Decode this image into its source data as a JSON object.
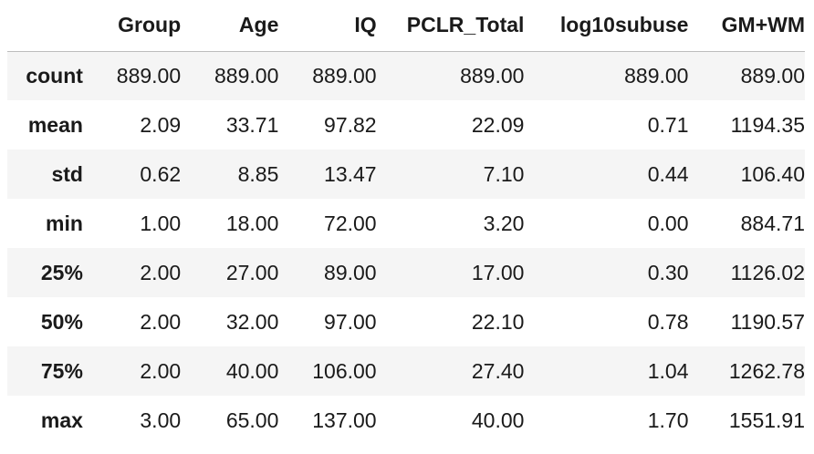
{
  "table": {
    "columns": [
      "",
      "Group",
      "Age",
      "IQ",
      "PCLR_Total",
      "log10subuse",
      "GM+WM"
    ],
    "rows": [
      {
        "label": "count",
        "values": [
          "889.00",
          "889.00",
          "889.00",
          "889.00",
          "889.00",
          "889.00"
        ]
      },
      {
        "label": "mean",
        "values": [
          "2.09",
          "33.71",
          "97.82",
          "22.09",
          "0.71",
          "1194.35"
        ]
      },
      {
        "label": "std",
        "values": [
          "0.62",
          "8.85",
          "13.47",
          "7.10",
          "0.44",
          "106.40"
        ]
      },
      {
        "label": "min",
        "values": [
          "1.00",
          "18.00",
          "72.00",
          "3.20",
          "0.00",
          "884.71"
        ]
      },
      {
        "label": "25%",
        "values": [
          "2.00",
          "27.00",
          "89.00",
          "17.00",
          "0.30",
          "1126.02"
        ]
      },
      {
        "label": "50%",
        "values": [
          "2.00",
          "32.00",
          "97.00",
          "22.10",
          "0.78",
          "1190.57"
        ]
      },
      {
        "label": "75%",
        "values": [
          "2.00",
          "40.00",
          "106.00",
          "27.40",
          "1.04",
          "1262.78"
        ]
      },
      {
        "label": "max",
        "values": [
          "3.00",
          "65.00",
          "137.00",
          "40.00",
          "1.70",
          "1551.91"
        ]
      }
    ]
  },
  "colors": {
    "striped_row": "#f5f5f5",
    "header_border": "#bdbdbd",
    "text": "#1a1a1a"
  }
}
